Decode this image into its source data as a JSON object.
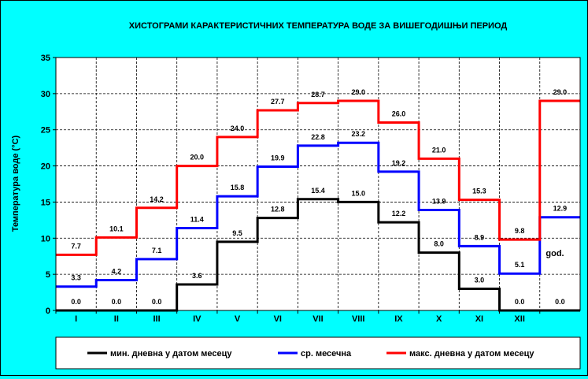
{
  "chart_data": {
    "type": "line",
    "step": true,
    "title": "ХИСТОГРАМИ КАРАКТЕРИСТИЧНИХ ТЕМПЕРАТУРА ВОДЕ ЗА ВИШЕГОДИШЊИ ПЕРИОД",
    "xlabel": "",
    "ylabel": "Температура воде (°C)",
    "ylim": [
      0,
      35
    ],
    "yticks": [
      0,
      5,
      10,
      15,
      20,
      25,
      30,
      35
    ],
    "grid": true,
    "legend_position": "bottom",
    "categories": [
      "I",
      "II",
      "III",
      "IV",
      "V",
      "VI",
      "VII",
      "VIII",
      "IX",
      "X",
      "XI",
      "XII",
      ""
    ],
    "annual_note": "god.",
    "series": [
      {
        "name": "мин. дневна у датом месецу",
        "color": "#000000",
        "values": [
          0.0,
          0.0,
          0.0,
          3.6,
          9.5,
          12.8,
          15.4,
          15.0,
          12.2,
          8.0,
          3.0,
          0.0,
          0.0
        ]
      },
      {
        "name": "ср. месечна",
        "color": "#0000ff",
        "values": [
          3.3,
          4.2,
          7.1,
          11.4,
          15.8,
          19.9,
          22.8,
          23.2,
          19.2,
          13.9,
          8.9,
          5.1,
          12.9
        ]
      },
      {
        "name": "макс. дневна у датом месецу",
        "color": "#ff0000",
        "values": [
          7.7,
          10.1,
          14.2,
          20.0,
          24.0,
          27.7,
          28.7,
          29.0,
          26.0,
          21.0,
          15.3,
          9.8,
          29.0
        ]
      }
    ]
  }
}
